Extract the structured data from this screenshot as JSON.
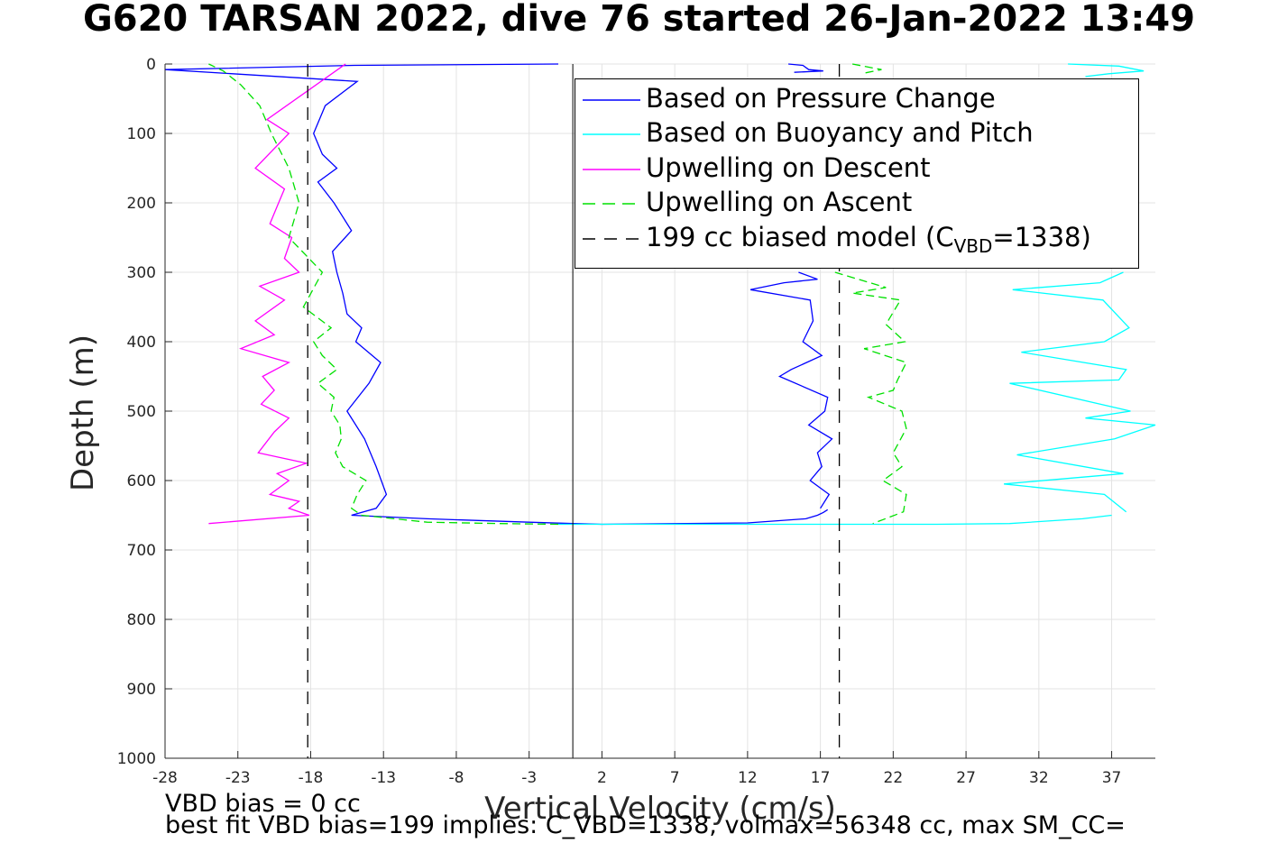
{
  "title": "G620 TARSAN 2022, dive 76 started 26-Jan-2022 13:49",
  "chart_data": {
    "type": "line",
    "xlabel": "Vertical Velocity (cm/s)",
    "ylabel": "Depth (m)",
    "xlim": [
      -28,
      40
    ],
    "ylim": [
      0,
      1000
    ],
    "y_reversed": true,
    "grid": true,
    "legend_position": "top-right",
    "xticks": [
      -28,
      -23,
      -18,
      -13,
      -8,
      -3,
      2,
      7,
      12,
      17,
      22,
      27,
      32,
      37
    ],
    "xtick_labels": [
      "-28",
      "-23",
      "-18",
      "-13",
      "-8",
      "-3",
      "2",
      "7",
      "12",
      "17",
      "22",
      "27",
      "32",
      "37"
    ],
    "yticks": [
      0,
      100,
      200,
      300,
      400,
      500,
      600,
      700,
      800,
      900,
      1000
    ],
    "ytick_labels": [
      "0",
      "100",
      "200",
      "300",
      "400",
      "500",
      "600",
      "700",
      "800",
      "900",
      "1000"
    ],
    "zero_line_x": 0,
    "series": [
      {
        "name": "Based on Pressure Change",
        "color": "#0000ff",
        "style": "solid",
        "segments": [
          {
            "x": [
              -1,
              -15,
              -28,
              -14.8,
              -17,
              -17.8,
              -17.2,
              -16.2,
              -17.5,
              -16.4,
              -15.2,
              -16.5,
              -16.2,
              -15.8,
              -15.5,
              -14.5,
              -14.9,
              -13.2,
              -14,
              -15.5,
              -14.3,
              -13.5,
              -12.8,
              -13.5,
              -15.2,
              -10,
              -3,
              0,
              2
            ],
            "y": [
              0,
              2,
              8,
              25,
              60,
              100,
              130,
              150,
              170,
              200,
              240,
              270,
              300,
              330,
              360,
              380,
              400,
              430,
              460,
              500,
              540,
              580,
              620,
              640,
              650,
              655,
              660,
              662,
              663
            ]
          },
          {
            "x": [
              2,
              12,
              16,
              16.8,
              17.2,
              17.5
            ],
            "y": [
              663,
              661,
              655,
              650,
              646,
              642
            ]
          },
          {
            "x": [
              15.5,
              16.8,
              14.5,
              12.2,
              16.3,
              16.5,
              15.8,
              17.1,
              15,
              14.2,
              17.5,
              17.3,
              16.2,
              17.8,
              16.8,
              17.1,
              16.3,
              17.6,
              17
            ],
            "y": [
              300,
              310,
              315,
              325,
              340,
              370,
              400,
              420,
              440,
              450,
              480,
              500,
              520,
              540,
              560,
              580,
              600,
              620,
              640
            ]
          },
          {
            "x": [
              14.8,
              15.8,
              16.2,
              17.2,
              15.2
            ],
            "y": [
              0,
              2,
              8,
              10,
              12
            ]
          }
        ]
      },
      {
        "name": "Based on Buoyancy and Pitch",
        "color": "#00ffff",
        "style": "solid",
        "segments": [
          {
            "x": [
              -1,
              2,
              12,
              25,
              30,
              35,
              37
            ],
            "y": [
              663,
              663,
              663,
              663,
              662,
              655,
              650
            ]
          },
          {
            "x": [
              37.8,
              36.2,
              30.2,
              36.4,
              38.2,
              36.5,
              30.8,
              38,
              37.5,
              30,
              38.3,
              35.2,
              40,
              37.2,
              30.5,
              37.8,
              29.6,
              36.5,
              38
            ],
            "y": [
              300,
              315,
              325,
              340,
              380,
              400,
              415,
              440,
              455,
              460,
              500,
              510,
              520,
              540,
              563,
              590,
              605,
              620,
              645
            ]
          },
          {
            "x": [
              34,
              37.5,
              39.2,
              36.8,
              35.2
            ],
            "y": [
              0,
              3,
              10,
              14,
              18
            ]
          }
        ]
      },
      {
        "name": "Upwelling on Descent",
        "color": "#ff00ff",
        "style": "solid",
        "segments": [
          {
            "x": [
              -15.6,
              -21,
              -19.5,
              -21.8,
              -19.8,
              -20.2,
              -20.8,
              -19.3,
              -19.8,
              -18.8,
              -21.5,
              -19.8,
              -21.8,
              -20.5,
              -22.8,
              -19.5,
              -21.3,
              -20.5,
              -21.4,
              -19.5,
              -20.5,
              -21.6,
              -18.3,
              -20.3,
              -19.5,
              -20.8,
              -18.8,
              -19.5,
              -18.1,
              -25
            ],
            "y": [
              0,
              80,
              100,
              150,
              180,
              200,
              230,
              250,
              280,
              300,
              320,
              340,
              370,
              390,
              410,
              430,
              450,
              470,
              490,
              510,
              530,
              560,
              575,
              590,
              600,
              620,
              630,
              640,
              650,
              662
            ]
          }
        ]
      },
      {
        "name": "Upwelling on Ascent",
        "color": "#00e000",
        "style": "dashed",
        "segments": [
          {
            "x": [
              -1,
              -5,
              -10,
              -14.5,
              -15.2,
              -14.8,
              -14.2,
              -15.8,
              -16.3,
              -15.9,
              -16,
              -16.6,
              -16.4,
              -17.5,
              -16.2,
              -17.2,
              -17.8,
              -16.6,
              -18.5,
              -17.2,
              -19.5,
              -18.8,
              -19.5,
              -20.7,
              -21.5,
              -22.8,
              -24,
              -25
            ],
            "y": [
              663,
              662,
              660,
              650,
              640,
              620,
              600,
              580,
              560,
              540,
              520,
              500,
              480,
              460,
              440,
              420,
              400,
              380,
              350,
              300,
              250,
              200,
              150,
              100,
              60,
              30,
              10,
              0
            ]
          },
          {
            "x": [
              18,
              21.5,
              19.2,
              22.5,
              21.5,
              22.8,
              20,
              22.9,
              22.3,
              22,
              20.3,
              22.6,
              22.9,
              22,
              22.6,
              21.3,
              22.9,
              22.7,
              20.6
            ],
            "y": [
              300,
              322,
              330,
              340,
              375,
              400,
              410,
              430,
              455,
              470,
              480,
              500,
              525,
              560,
              580,
              600,
              620,
              645,
              662
            ]
          },
          {
            "x": [
              19.2,
              21.2,
              19.8
            ],
            "y": [
              0,
              8,
              14
            ]
          }
        ]
      },
      {
        "name": "199 cc biased model (C_VBD=1338)",
        "color": "#000000",
        "style": "dashed",
        "segments": [
          {
            "x": [
              -18.2,
              -18.2
            ],
            "y": [
              0,
              1000
            ]
          },
          {
            "x": [
              18.3,
              18.3
            ],
            "y": [
              0,
              1000
            ]
          }
        ]
      }
    ]
  },
  "legend": {
    "items": [
      {
        "label": "Based on Pressure Change",
        "color": "#0000ff",
        "style": "solid"
      },
      {
        "label": "Based on Buoyancy and Pitch",
        "color": "#00ffff",
        "style": "solid"
      },
      {
        "label": "Upwelling on Descent",
        "color": "#ff00ff",
        "style": "solid"
      },
      {
        "label": "Upwelling on Ascent",
        "color": "#00e000",
        "style": "dashed"
      }
    ],
    "model_label_prefix": "199 cc biased model (C",
    "model_label_sub": "VBD",
    "model_label_suffix": "=1338)"
  },
  "notes": {
    "line1": "VBD bias = 0 cc",
    "line2": "best fit VBD bias=199 implies: C_VBD=1338, volmax=56348 cc, max SM_CC="
  }
}
